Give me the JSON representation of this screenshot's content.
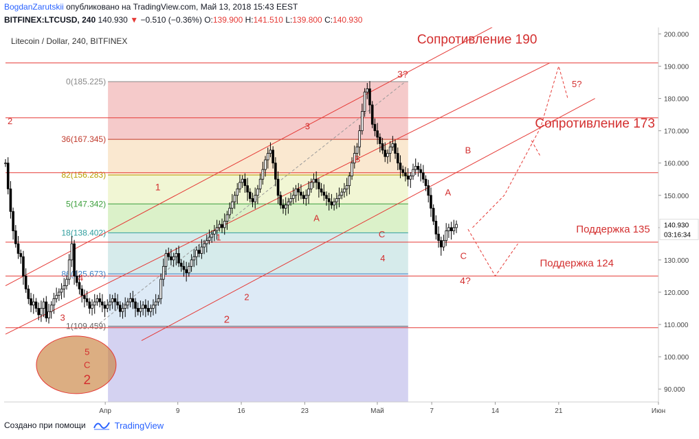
{
  "header": {
    "author": "BogdanZarutskii",
    "published": "опубликовано на TradingView.com, Май 13, 2018 15:43 EEST",
    "symbol": "BITFINEX:LTCUSD, 240",
    "last": "140.930",
    "change": "−0.510 (−0.36%)",
    "open_label": "O:",
    "open": "139.900",
    "high_label": "H:",
    "high": "141.510",
    "low_label": "L:",
    "low": "139.800",
    "close_label": "C:",
    "close": "140.930"
  },
  "footer": {
    "created_with": "Создано при помощи",
    "brand": "TradingView"
  },
  "colors": {
    "red_line": "#e53935",
    "candle": "#000000",
    "fib0": "#f3c1c1",
    "fib236": "#f9e4c8",
    "fib382": "#eef4cc",
    "fib5": "#d5eec0",
    "fib618": "#cfe7e8",
    "fib786": "#d7e6f5",
    "fib1": "#dddddd",
    "below": "#cfcdf0"
  },
  "chart_data": {
    "type": "candlestick",
    "title": "Litecoin / Dollar, 240, BITFINEX",
    "ylim": [
      86,
      202
    ],
    "y_ticks": [
      "90.000",
      "100.000",
      "110.000",
      "120.000",
      "130.000",
      "140.000",
      "150.000",
      "160.000",
      "170.000",
      "180.000",
      "190.000",
      "200.000"
    ],
    "y_tick_values": [
      90,
      100,
      110,
      120,
      130,
      140,
      150,
      160,
      170,
      180,
      190,
      200
    ],
    "x_range_days": [
      -10,
      62
    ],
    "x_ticks": [
      {
        "label": "Апр",
        "day": 1
      },
      {
        "label": "9",
        "day": 9
      },
      {
        "label": "16",
        "day": 16
      },
      {
        "label": "23",
        "day": 23
      },
      {
        "label": "Май",
        "day": 31
      },
      {
        "label": "7",
        "day": 37
      },
      {
        "label": "14",
        "day": 44
      },
      {
        "label": "21",
        "day": 51
      },
      {
        "label": "Июн",
        "day": 62
      }
    ],
    "last_price": "140.930",
    "countdown": "03:16:34",
    "fib_levels": [
      {
        "label": "0(185.225)",
        "value": 185.225
      },
      {
        "label": "36(167.345)",
        "value": 167.345
      },
      {
        "label": "82(156.283)",
        "value": 156.283
      },
      {
        "label": "5(147.342)",
        "value": 147.342
      },
      {
        "label": "18(138.402)",
        "value": 138.402
      },
      {
        "label": "86(125.673)",
        "value": 125.673
      },
      {
        "label": "1(109.459)",
        "value": 109.459
      }
    ],
    "fib_range_days": [
      1.3,
      34.4
    ],
    "horizontal_lines": [
      191,
      174,
      157,
      135.5,
      125,
      109
    ],
    "annotations": [
      {
        "text": "Сопротивление 190",
        "x": 42,
        "y": 197,
        "size": 19
      },
      {
        "text": "Сопротивление 173",
        "x": 55,
        "y": 171,
        "size": 19
      },
      {
        "text": "Поддержка 135",
        "x": 57,
        "y": 138.5,
        "size": 15
      },
      {
        "text": "Поддержка 124",
        "x": 53,
        "y": 128,
        "size": 15
      },
      {
        "text": "3?",
        "x": 33.8,
        "y": 186.5,
        "size": 14
      },
      {
        "text": "5?",
        "x": 53,
        "y": 183.5,
        "size": 13
      },
      {
        "text": "3",
        "x": 23.3,
        "y": 170.5,
        "size": 13
      },
      {
        "text": "B",
        "x": 28.8,
        "y": 160.2,
        "size": 13
      },
      {
        "text": "B",
        "x": 41,
        "y": 163,
        "size": 13
      },
      {
        "text": "1",
        "x": 6.8,
        "y": 151.5,
        "size": 14
      },
      {
        "text": "1",
        "x": 13.5,
        "y": 136,
        "size": 13
      },
      {
        "text": "A",
        "x": 24.3,
        "y": 142,
        "size": 13
      },
      {
        "text": "C",
        "x": 31.5,
        "y": 137,
        "size": 13
      },
      {
        "text": "A",
        "x": 38.8,
        "y": 150,
        "size": 13
      },
      {
        "text": "C",
        "x": 40.5,
        "y": 130.3,
        "size": 13
      },
      {
        "text": "4",
        "x": 31.6,
        "y": 129.6,
        "size": 13
      },
      {
        "text": "4?",
        "x": 40.7,
        "y": 122.5,
        "size": 14
      },
      {
        "text": "4",
        "x": -1.7,
        "y": 123.5,
        "size": 13
      },
      {
        "text": "2",
        "x": 16.6,
        "y": 117.6,
        "size": 13
      },
      {
        "text": "2",
        "x": 14.4,
        "y": 110.5,
        "size": 15
      },
      {
        "text": "3",
        "x": -3.7,
        "y": 111.2,
        "size": 13
      },
      {
        "text": "2",
        "x": -9.5,
        "y": 172,
        "size": 13
      },
      {
        "text": "5",
        "x": -1,
        "y": 100.6,
        "size": 13
      },
      {
        "text": "C",
        "x": -1,
        "y": 96.5,
        "size": 13
      },
      {
        "text": "2",
        "x": -1,
        "y": 91.5,
        "size": 19
      }
    ],
    "channels": [
      {
        "x1": -10,
        "y1": 122,
        "x2": 49,
        "y2": 210
      },
      {
        "x1": -10,
        "y1": 107,
        "x2": 50,
        "y2": 191
      },
      {
        "x1": 5,
        "y1": 105,
        "x2": 55,
        "y2": 180
      }
    ],
    "dashed_projection": [
      [
        41.5,
        140
      ],
      [
        45,
        150
      ],
      [
        49,
        171
      ],
      [
        51,
        190
      ],
      [
        52,
        180
      ]
    ],
    "dashed_projection2": [
      [
        41,
        139.5
      ],
      [
        44,
        125
      ],
      [
        46.5,
        135
      ]
    ],
    "dashed_projection3": [
      [
        48,
        167
      ],
      [
        49,
        162
      ]
    ],
    "candles_close": [
      160,
      152,
      145,
      139,
      135,
      132,
      131,
      125,
      121,
      118,
      116,
      117,
      115,
      113,
      115,
      117,
      112,
      114,
      116,
      118,
      119,
      120,
      121,
      122,
      124,
      130,
      135,
      125,
      123,
      121,
      119,
      118,
      117,
      115,
      116,
      117,
      118,
      117,
      116,
      115,
      116,
      117,
      118,
      117,
      116,
      114,
      115,
      116,
      117,
      118,
      117,
      115,
      114,
      115,
      116,
      115,
      114,
      115,
      116,
      117,
      118,
      124,
      128,
      132,
      131,
      130,
      131,
      132,
      129,
      128,
      127,
      126,
      128,
      130,
      131,
      133,
      132,
      134,
      135,
      136,
      137,
      138,
      139,
      140,
      141,
      140,
      142,
      144,
      146,
      148,
      150,
      152,
      154,
      155,
      153,
      151,
      149,
      148,
      150,
      152,
      155,
      158,
      161,
      163,
      164,
      160,
      155,
      150,
      147,
      146,
      147,
      148,
      149,
      150,
      152,
      151,
      150,
      149,
      150,
      152,
      154,
      155,
      154,
      152,
      151,
      150,
      149,
      148,
      147,
      148,
      149,
      150,
      151,
      152,
      153,
      156,
      160,
      163,
      165,
      170,
      176,
      182,
      183,
      178,
      172,
      170,
      168,
      166,
      164,
      162,
      163,
      165,
      166,
      163,
      160,
      158,
      157,
      156,
      155,
      156,
      158,
      159,
      158,
      157,
      155,
      153,
      150,
      146,
      142,
      138,
      136,
      134,
      136,
      139,
      140,
      139,
      140,
      141
    ]
  }
}
